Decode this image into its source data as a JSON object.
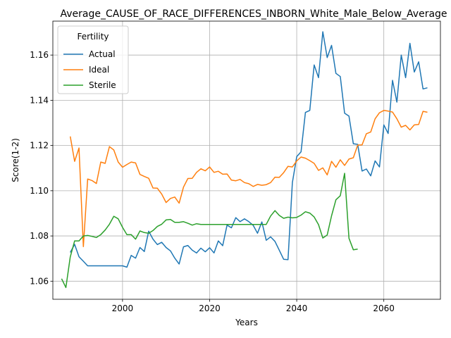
{
  "chart_data": {
    "type": "line",
    "title": "Average_CAUSE_OF_RACE_DIFFERENCES_INBORN_White_Male_Below_Average",
    "xlabel": "Years",
    "ylabel": "Score(1-2)",
    "xlim": [
      1984,
      2073
    ],
    "ylim": [
      1.052,
      1.175
    ],
    "xticks": [
      2000,
      2020,
      2040,
      2060
    ],
    "yticks": [
      1.06,
      1.08,
      1.1,
      1.12,
      1.14,
      1.16
    ],
    "ytick_labels": [
      "1.06",
      "1.08",
      "1.10",
      "1.12",
      "1.14",
      "1.16"
    ],
    "grid": true,
    "legend": {
      "title": "Fertility",
      "placement": "upper-left"
    },
    "series": [
      {
        "name": "Actual",
        "color": "#1f77b4",
        "x": [
          1988,
          1989,
          1990,
          1991,
          1992,
          1993,
          1994,
          1995,
          1996,
          1997,
          1998,
          1999,
          2000,
          2001,
          2002,
          2003,
          2004,
          2005,
          2006,
          2007,
          2008,
          2009,
          2010,
          2011,
          2012,
          2013,
          2014,
          2015,
          2016,
          2017,
          2018,
          2019,
          2020,
          2021,
          2022,
          2023,
          2024,
          2025,
          2026,
          2027,
          2028,
          2029,
          2030,
          2031,
          2032,
          2033,
          2034,
          2035,
          2036,
          2037,
          2038,
          2039,
          2040,
          2041,
          2042,
          2043,
          2044,
          2045,
          2046,
          2047,
          2048,
          2049,
          2050,
          2051,
          2052,
          2053,
          2054,
          2055,
          2056,
          2057,
          2058,
          2059,
          2060,
          2061,
          2062,
          2063,
          2064,
          2065,
          2066,
          2067,
          2068,
          2069,
          2070
        ],
        "values": [
          1.0727,
          1.0763,
          1.0708,
          1.0688,
          1.0668,
          1.0668,
          1.0668,
          1.0668,
          1.0668,
          1.0668,
          1.0668,
          1.0668,
          1.0668,
          1.0662,
          1.0714,
          1.0702,
          1.0749,
          1.0731,
          1.0821,
          1.0786,
          1.0762,
          1.0772,
          1.0749,
          1.0734,
          1.0702,
          1.0676,
          1.0752,
          1.0758,
          1.0737,
          1.0725,
          1.0746,
          1.073,
          1.0748,
          1.0725,
          1.0778,
          1.0757,
          1.0848,
          1.0836,
          1.0881,
          1.0863,
          1.0876,
          1.0863,
          1.0847,
          1.0812,
          1.0862,
          1.0781,
          1.0796,
          1.0776,
          1.0737,
          1.0697,
          1.0695,
          1.1036,
          1.1151,
          1.1172,
          1.1346,
          1.1355,
          1.1556,
          1.15,
          1.1703,
          1.1589,
          1.1643,
          1.1519,
          1.1505,
          1.1343,
          1.133,
          1.1208,
          1.1205,
          1.1087,
          1.1096,
          1.1066,
          1.1132,
          1.1105,
          1.1291,
          1.1253,
          1.1488,
          1.1392,
          1.16,
          1.15,
          1.1652,
          1.1525,
          1.157,
          1.145,
          1.1455
        ]
      },
      {
        "name": "Ideal",
        "color": "#ff7f0e",
        "x": [
          1988,
          1989,
          1990,
          1991,
          1992,
          1993,
          1994,
          1995,
          1996,
          1997,
          1998,
          1999,
          2000,
          2001,
          2002,
          2003,
          2004,
          2005,
          2006,
          2007,
          2008,
          2009,
          2010,
          2011,
          2012,
          2013,
          2014,
          2015,
          2016,
          2017,
          2018,
          2019,
          2020,
          2021,
          2022,
          2023,
          2024,
          2025,
          2026,
          2027,
          2028,
          2029,
          2030,
          2031,
          2032,
          2033,
          2034,
          2035,
          2036,
          2037,
          2038,
          2039,
          2040,
          2041,
          2042,
          2043,
          2044,
          2045,
          2046,
          2047,
          2048,
          2049,
          2050,
          2051,
          2052,
          2053,
          2054,
          2055,
          2056,
          2057,
          2058,
          2059,
          2060,
          2061,
          2062,
          2063,
          2064,
          2065,
          2066,
          2067,
          2068,
          2069,
          2070
        ],
        "values": [
          1.124,
          1.113,
          1.1189,
          1.0753,
          1.1052,
          1.1045,
          1.1032,
          1.1127,
          1.1121,
          1.1195,
          1.118,
          1.1127,
          1.1104,
          1.1116,
          1.1127,
          1.1123,
          1.1072,
          1.1063,
          1.1055,
          1.1012,
          1.1011,
          1.0985,
          1.0948,
          1.0966,
          1.0972,
          1.0945,
          1.1016,
          1.1054,
          1.1055,
          1.1081,
          1.1097,
          1.1088,
          1.1105,
          1.1081,
          1.1086,
          1.1073,
          1.1074,
          1.1047,
          1.1044,
          1.105,
          1.1036,
          1.1031,
          1.1019,
          1.1028,
          1.1024,
          1.1027,
          1.1036,
          1.106,
          1.1059,
          1.108,
          1.1108,
          1.1105,
          1.1132,
          1.1149,
          1.1144,
          1.1133,
          1.1121,
          1.109,
          1.1101,
          1.107,
          1.113,
          1.1104,
          1.1137,
          1.1112,
          1.114,
          1.1146,
          1.1202,
          1.1203,
          1.1252,
          1.126,
          1.1318,
          1.1345,
          1.1355,
          1.1352,
          1.1348,
          1.1318,
          1.1281,
          1.1289,
          1.1269,
          1.1291,
          1.1293,
          1.1351,
          1.1347
        ]
      },
      {
        "name": "Sterile",
        "color": "#2ca02c",
        "x": [
          1986,
          1987,
          1988,
          1989,
          1990,
          1991,
          1992,
          1993,
          1994,
          1995,
          1996,
          1997,
          1998,
          1999,
          2000,
          2001,
          2002,
          2003,
          2004,
          2005,
          2006,
          2007,
          2008,
          2009,
          2010,
          2011,
          2012,
          2013,
          2014,
          2015,
          2016,
          2017,
          2018,
          2019,
          2020,
          2021,
          2022,
          2023,
          2024,
          2025,
          2026,
          2027,
          2028,
          2029,
          2030,
          2031,
          2032,
          2033,
          2034,
          2035,
          2036,
          2037,
          2038,
          2039,
          2040,
          2041,
          2042,
          2043,
          2044,
          2045,
          2046,
          2047,
          2048,
          2049,
          2050,
          2051,
          2052,
          2053,
          2054
        ],
        "values": [
          1.0611,
          1.0572,
          1.0707,
          1.0778,
          1.0778,
          1.08,
          1.0802,
          1.0798,
          1.0793,
          1.0806,
          1.0826,
          1.0852,
          1.0887,
          1.0876,
          1.0838,
          1.0806,
          1.0806,
          1.0786,
          1.0822,
          1.0815,
          1.0812,
          1.0824,
          1.0842,
          1.0852,
          1.0871,
          1.0873,
          1.086,
          1.086,
          1.0863,
          1.0856,
          1.0848,
          1.0854,
          1.0851,
          1.0851,
          1.0851,
          1.0851,
          1.0851,
          1.0851,
          1.0851,
          1.0851,
          1.0851,
          1.0851,
          1.0851,
          1.0851,
          1.0851,
          1.0851,
          1.0851,
          1.0851,
          1.0888,
          1.0912,
          1.0891,
          1.0878,
          1.0883,
          1.088,
          1.0882,
          1.0892,
          1.0907,
          1.0901,
          1.0884,
          1.085,
          1.0791,
          1.0804,
          1.0889,
          1.096,
          1.0978,
          1.1077,
          1.079,
          1.0739,
          1.0742
        ]
      }
    ]
  }
}
